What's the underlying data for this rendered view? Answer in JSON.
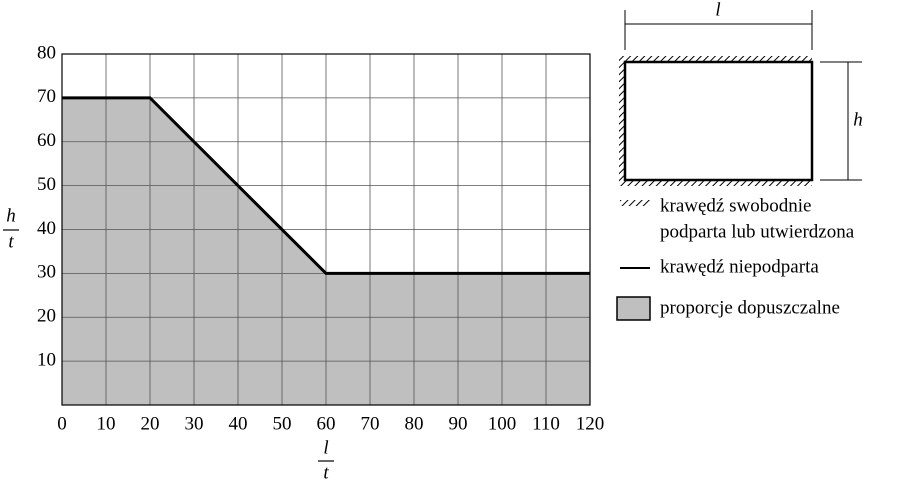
{
  "chart_data": {
    "type": "area",
    "x": [
      0,
      20,
      60,
      120
    ],
    "series": [
      {
        "name": "proporcje dopuszczalne",
        "color": "#bfbfbf",
        "values": [
          70,
          70,
          30,
          30
        ]
      }
    ],
    "xlim": [
      0,
      120
    ],
    "xticks": [
      0,
      10,
      20,
      30,
      40,
      50,
      60,
      70,
      80,
      90,
      100,
      110,
      120
    ],
    "ylim": [
      0,
      80
    ],
    "yticks": [
      10,
      20,
      30,
      40,
      50,
      60,
      70,
      80
    ],
    "grid": true,
    "xlabel": {
      "numerator": "l",
      "denominator": "t"
    },
    "ylabel": {
      "numerator": "h",
      "denominator": "t"
    }
  },
  "diagram": {
    "width_label": "l",
    "height_label": "h",
    "supported_edge": [
      "krawędź swobodnie",
      "podparta lub utwierdzona"
    ],
    "free_edge": "krawędź niepodparta"
  }
}
